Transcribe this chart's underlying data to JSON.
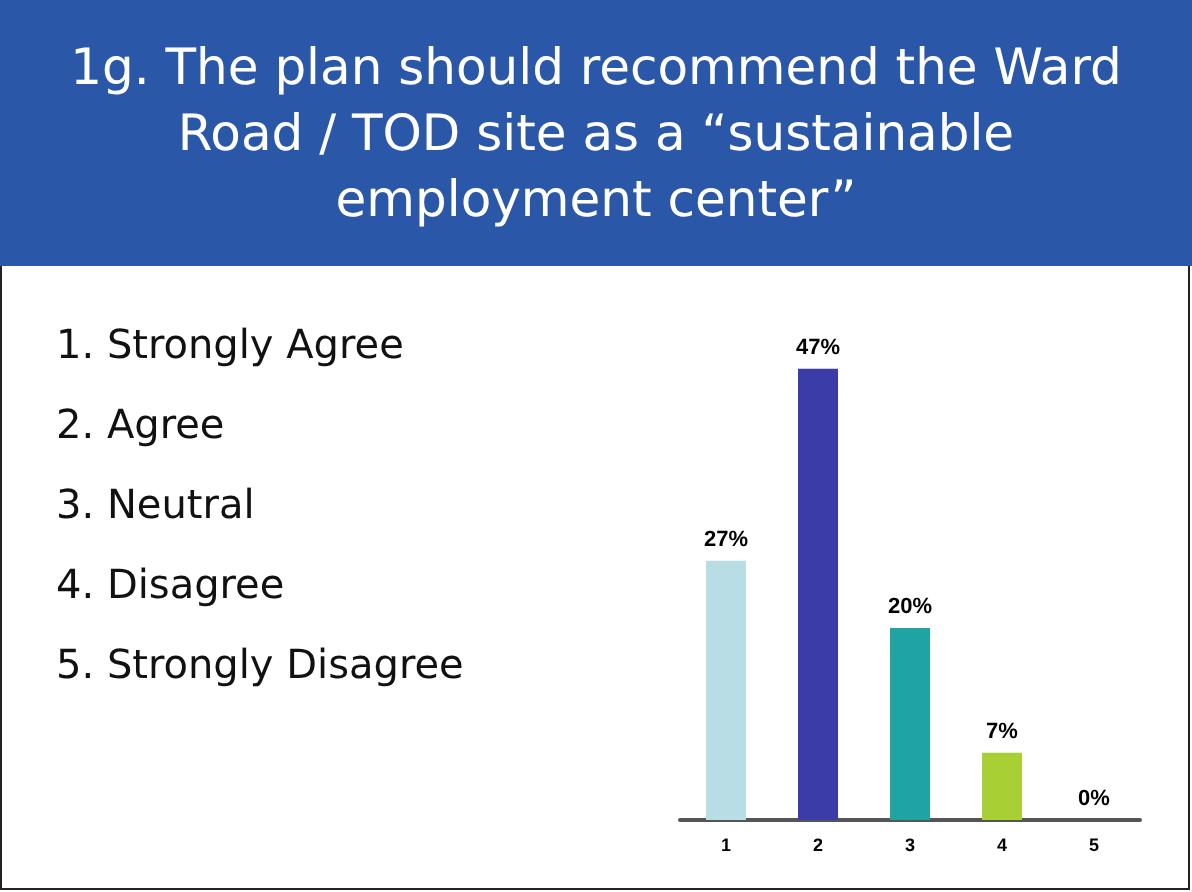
{
  "chart_data": {
    "type": "bar",
    "title": "1g.  The plan should recommend the Ward Road / TOD site as a “sustainable employment center”",
    "annotations": [
      "1.  Strongly Agree",
      "2.  Agree",
      "3.  Neutral",
      "4.  Disagree",
      "5.  Strongly Disagree"
    ],
    "categories": [
      "1",
      "2",
      "3",
      "4",
      "5"
    ],
    "values": [
      27,
      47,
      20,
      7,
      0
    ],
    "colors": [
      "#b8dde4",
      "#3c3ca8",
      "#1fa3a3",
      "#a8d034",
      "#d8d8d8"
    ],
    "value_labels": [
      "27%",
      "47%",
      "20%",
      "7%",
      "0%"
    ]
  }
}
